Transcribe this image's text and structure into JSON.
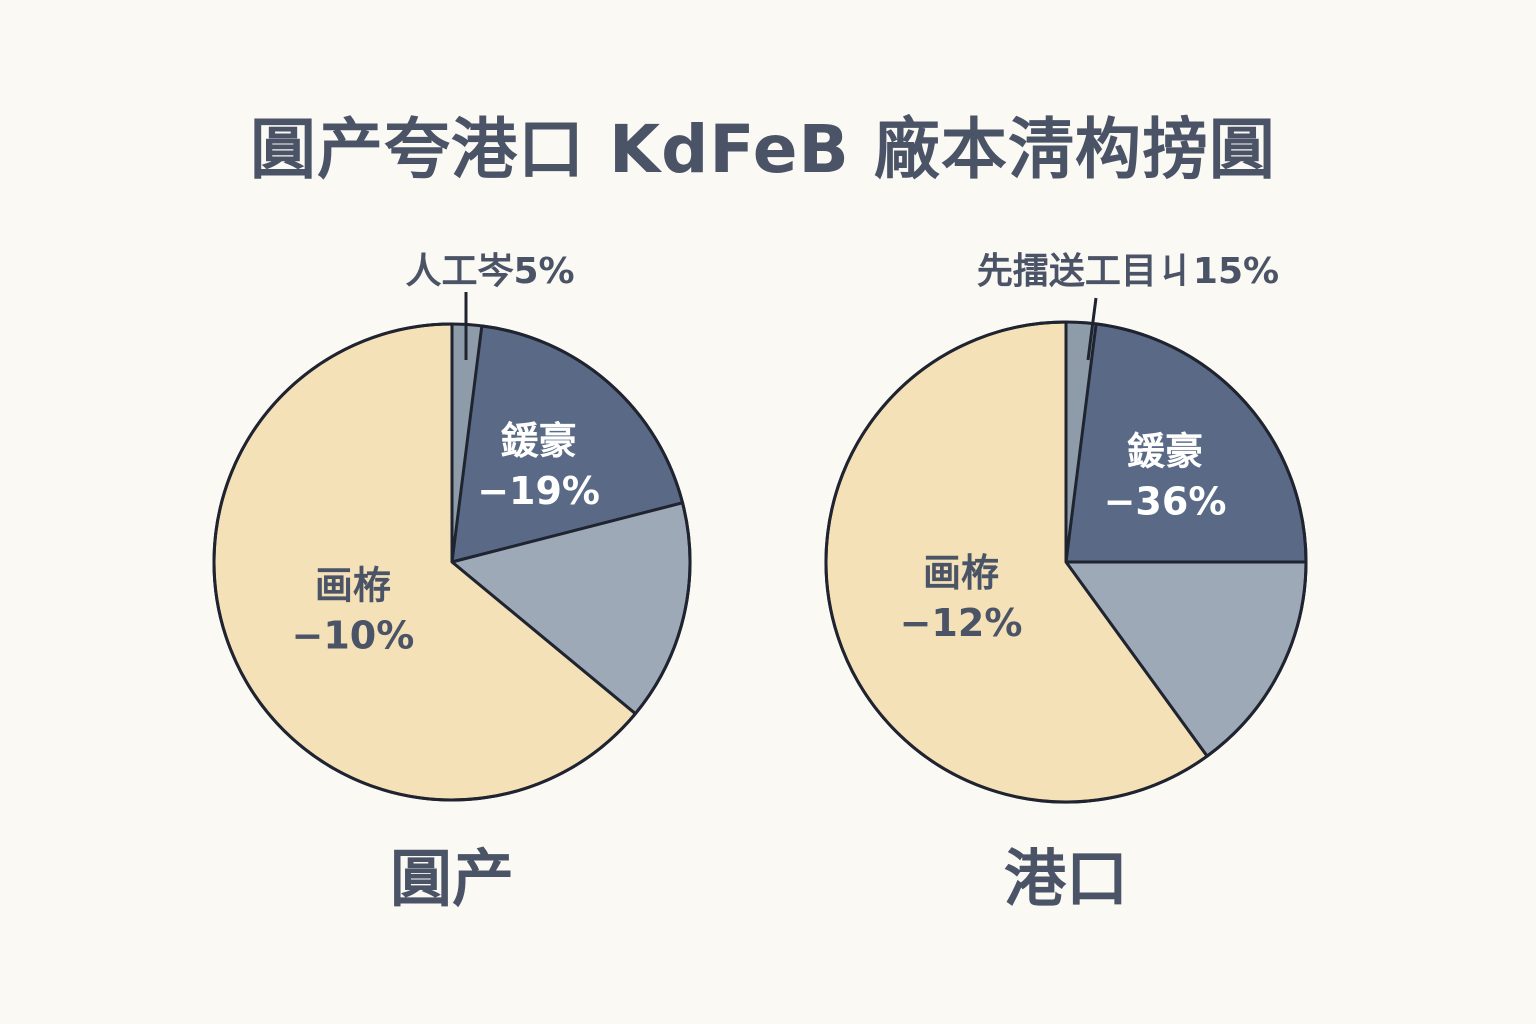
{
  "chart_data": {
    "type": "pie",
    "title": "圓产夸港口 KdFeB 廠本淸构搒圓",
    "colors": {
      "dark": "#5a6a86",
      "medium": "#9ea9b7",
      "light": "#f4e1b7",
      "sliver": "#8e9caa",
      "outline": "#1f2430",
      "text_dark": "#4b5466",
      "text_light": "#ffffff"
    },
    "pies": [
      {
        "caption": "圓产",
        "callout": "人工岑5%",
        "slices": [
          {
            "value": 2,
            "color": "#8e9caa"
          },
          {
            "value": 19,
            "color": "#5a6a86",
            "label_line1": "鍰豪",
            "label_line2": "−19%"
          },
          {
            "value": 15,
            "color": "#9ea9b7"
          },
          {
            "value": 64,
            "color": "#f4e1b7",
            "label_line1": "画栫",
            "label_line2": "−10%"
          }
        ]
      },
      {
        "caption": "港口",
        "callout": "先擂送工目ㄐ15%",
        "slices": [
          {
            "value": 2,
            "color": "#8e9caa"
          },
          {
            "value": 23,
            "color": "#5a6a86",
            "label_line1": "鍰豪",
            "label_line2": "−36%"
          },
          {
            "value": 15,
            "color": "#9ea9b7"
          },
          {
            "value": 60,
            "color": "#f4e1b7",
            "label_line1": "画栫",
            "label_line2": "−12%"
          }
        ]
      }
    ]
  }
}
